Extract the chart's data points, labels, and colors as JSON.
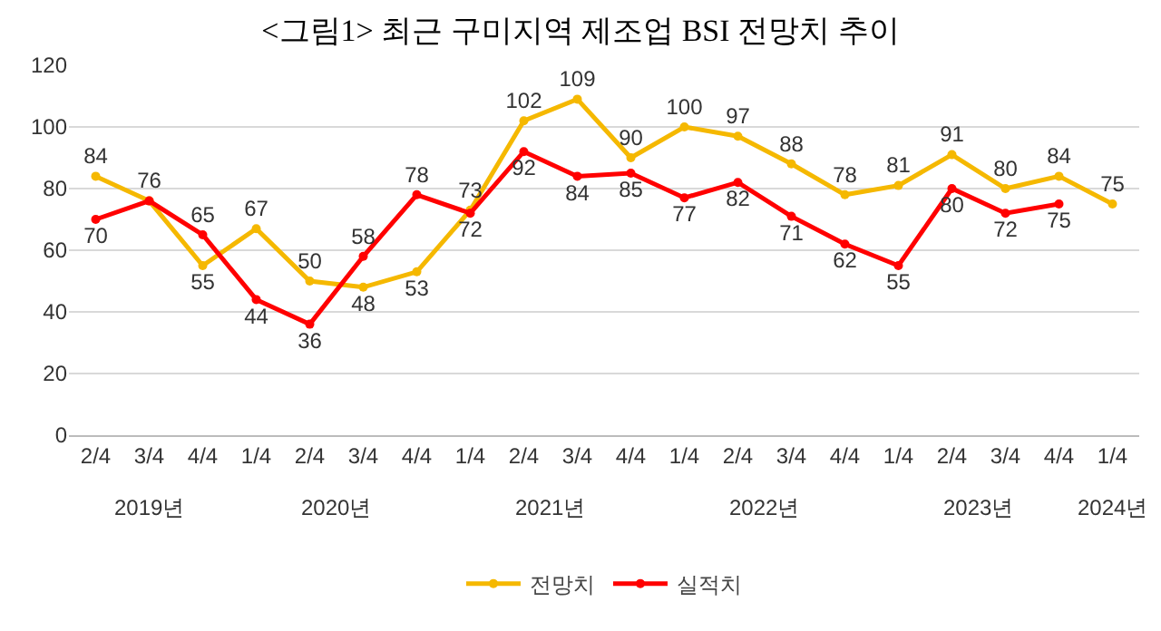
{
  "chart_data": {
    "type": "line",
    "title": "<그림1> 최근 구미지역 제조업 BSI 전망치 추이",
    "categories": [
      "2/4",
      "3/4",
      "4/4",
      "1/4",
      "2/4",
      "3/4",
      "4/4",
      "1/4",
      "2/4",
      "3/4",
      "4/4",
      "1/4",
      "2/4",
      "3/4",
      "4/4",
      "1/4",
      "2/4",
      "3/4",
      "4/4",
      "1/4"
    ],
    "series": [
      {
        "name": "전망치",
        "color": "#f5b800",
        "values": [
          84,
          76,
          55,
          67,
          50,
          48,
          53,
          73,
          102,
          109,
          90,
          100,
          97,
          88,
          78,
          81,
          91,
          80,
          84,
          75
        ]
      },
      {
        "name": "실적치",
        "color": "#ff0000",
        "values": [
          70,
          76,
          65,
          44,
          36,
          58,
          78,
          72,
          92,
          84,
          85,
          77,
          82,
          71,
          62,
          55,
          80,
          72,
          75,
          null
        ],
        "value_labels": [
          "70",
          null,
          "65",
          "44",
          "36",
          "58",
          "78",
          "72",
          "92",
          "84",
          "85",
          "77",
          "82",
          "71",
          "62",
          "55",
          "80",
          "72",
          "75",
          null
        ]
      }
    ],
    "data_labels": true,
    "annotations": [
      "2019년",
      "2020년",
      "2021년",
      "2022년",
      "2023년",
      "2024년"
    ],
    "ylim": [
      0,
      120
    ],
    "yticks": [
      0,
      20,
      40,
      60,
      80,
      100,
      120
    ],
    "grid": "y",
    "legend": "bottom",
    "marker": "circle",
    "line_style": "solid"
  }
}
